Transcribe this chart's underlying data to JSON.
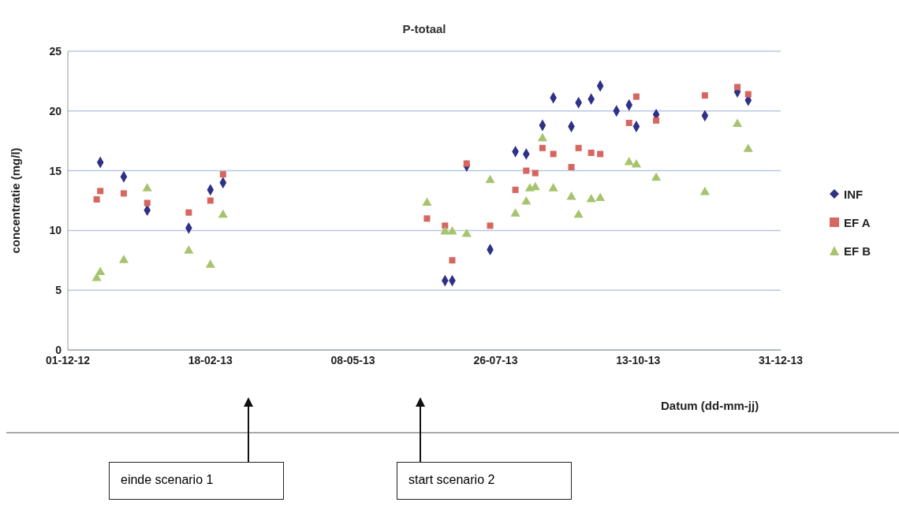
{
  "chart_data": {
    "type": "scatter",
    "title": "P-totaal",
    "xlabel": "Datum (dd-mm-jj)",
    "ylabel": "concentratie  (mg/l)",
    "xlim": [
      "2012-12-01",
      "2013-12-31"
    ],
    "xticks": [
      {
        "value": "2012-12-01",
        "label": "01-12-12"
      },
      {
        "value": "2013-02-18",
        "label": "18-02-13"
      },
      {
        "value": "2013-05-08",
        "label": "08-05-13"
      },
      {
        "value": "2013-07-26",
        "label": "26-07-13"
      },
      {
        "value": "2013-10-13",
        "label": "13-10-13"
      },
      {
        "value": "2013-12-31",
        "label": "31-12-13"
      }
    ],
    "ylim": [
      0,
      25
    ],
    "yticks": [
      0,
      5,
      10,
      15,
      20,
      25
    ],
    "grid": "y",
    "legend": "right",
    "series": [
      {
        "name": "INF",
        "color": "#2e3185",
        "marker": "diamond",
        "x": [
          "2012-12-19",
          "2013-01-01",
          "2013-01-14",
          "2013-02-06",
          "2013-02-18",
          "2013-02-25",
          "2013-06-28",
          "2013-07-02",
          "2013-07-10",
          "2013-07-23",
          "2013-08-06",
          "2013-08-12",
          "2013-08-21",
          "2013-08-27",
          "2013-09-06",
          "2013-09-10",
          "2013-09-17",
          "2013-09-22",
          "2013-10-01",
          "2013-10-08",
          "2013-10-12",
          "2013-10-23",
          "2013-11-19",
          "2013-12-07",
          "2013-12-13"
        ],
        "values": [
          15.7,
          14.5,
          11.7,
          10.2,
          13.4,
          14.0,
          5.8,
          5.8,
          15.4,
          8.4,
          16.6,
          16.4,
          18.8,
          21.1,
          18.7,
          20.7,
          21.0,
          22.1,
          20.0,
          20.5,
          18.7,
          19.7,
          19.6,
          21.6,
          20.9
        ]
      },
      {
        "name": "EF A",
        "color": "#d6665f",
        "marker": "square",
        "x": [
          "2012-12-17",
          "2012-12-19",
          "2013-01-01",
          "2013-01-14",
          "2013-02-06",
          "2013-02-18",
          "2013-02-25",
          "2013-06-18",
          "2013-06-28",
          "2013-07-02",
          "2013-07-10",
          "2013-07-23",
          "2013-08-06",
          "2013-08-12",
          "2013-08-17",
          "2013-08-21",
          "2013-08-27",
          "2013-09-06",
          "2013-09-10",
          "2013-09-17",
          "2013-09-22",
          "2013-10-08",
          "2013-10-12",
          "2013-10-23",
          "2013-11-19",
          "2013-12-07",
          "2013-12-13"
        ],
        "values": [
          12.6,
          13.3,
          13.1,
          12.3,
          11.5,
          12.5,
          14.7,
          11.0,
          10.4,
          7.5,
          15.6,
          10.4,
          13.4,
          15.0,
          14.8,
          16.9,
          16.4,
          15.3,
          16.9,
          16.5,
          16.4,
          19.0,
          21.2,
          19.2,
          21.3,
          22.0,
          21.4
        ]
      },
      {
        "name": "EF B",
        "color": "#a6c46e",
        "marker": "triangle",
        "x": [
          "2012-12-17",
          "2012-12-19",
          "2013-01-01",
          "2013-01-14",
          "2013-02-06",
          "2013-02-18",
          "2013-02-25",
          "2013-06-18",
          "2013-06-28",
          "2013-07-02",
          "2013-07-10",
          "2013-07-23",
          "2013-08-06",
          "2013-08-12",
          "2013-08-14",
          "2013-08-17",
          "2013-08-21",
          "2013-08-27",
          "2013-09-06",
          "2013-09-10",
          "2013-09-17",
          "2013-09-22",
          "2013-10-08",
          "2013-10-12",
          "2013-10-23",
          "2013-11-19",
          "2013-12-07",
          "2013-12-13"
        ],
        "values": [
          6.0,
          6.5,
          7.5,
          13.5,
          8.3,
          7.1,
          11.3,
          12.3,
          9.9,
          9.9,
          9.7,
          14.2,
          11.4,
          12.4,
          13.5,
          13.6,
          17.7,
          13.5,
          12.8,
          11.3,
          12.6,
          12.7,
          15.7,
          15.5,
          14.4,
          13.2,
          18.9,
          16.8
        ]
      }
    ],
    "annotations": [
      "einde scenario 1",
      "start scenario 2"
    ]
  }
}
